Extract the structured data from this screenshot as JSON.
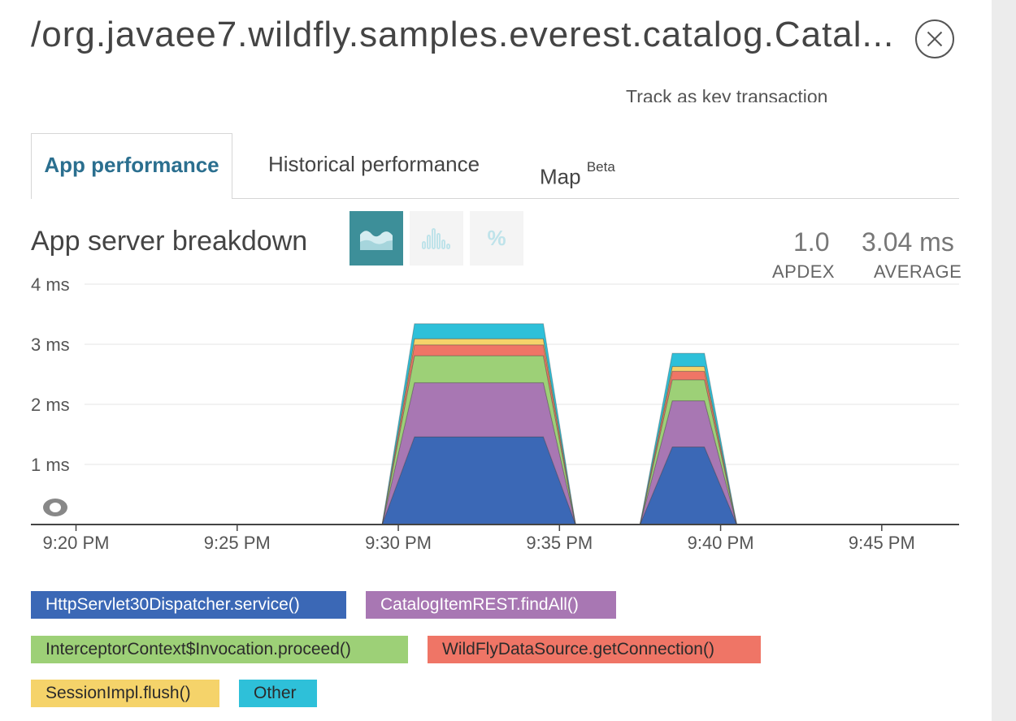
{
  "header": {
    "title": "/org.javaee7.wildfly.samples.everest.catalog.Catal...",
    "track_link": "Track as key transaction"
  },
  "tabs": [
    {
      "label": "App performance",
      "active": true
    },
    {
      "label": "Historical performance",
      "active": false
    },
    {
      "label": "Map",
      "badge": "Beta",
      "active": false
    }
  ],
  "section": {
    "title": "App server breakdown",
    "view_buttons": [
      {
        "icon": "area-chart-icon",
        "active": true
      },
      {
        "icon": "histogram-icon",
        "active": false
      },
      {
        "icon": "percent-icon",
        "label": "%",
        "active": false
      }
    ]
  },
  "stats": {
    "apdex": {
      "value": "1.0",
      "label": "APDEX"
    },
    "average": {
      "value": "3.04 ms",
      "label": "AVERAGE"
    }
  },
  "chart_data": {
    "type": "area",
    "stacked": true,
    "y_ticks": [
      "1 ms",
      "2 ms",
      "3 ms",
      "4 ms"
    ],
    "y_tick_values": [
      1,
      2,
      3,
      4
    ],
    "ylim": [
      0,
      4
    ],
    "x_tick_labels": [
      "9:20 PM",
      "9:25 PM",
      "9:30 PM",
      "9:35 PM",
      "9:40 PM",
      "9:45 PM"
    ],
    "x_tick_minutes": [
      20,
      25,
      30,
      35,
      40,
      45
    ],
    "xlim_minutes": [
      18.6,
      47.4
    ],
    "x_minutes": [
      29.5,
      30.5,
      34.5,
      35.5,
      37.5,
      38.5,
      39.5,
      40.5
    ],
    "series": [
      {
        "name": "HttpServlet30Dispatcher.service()",
        "color": "#3b68b6",
        "values": [
          0,
          1.46,
          1.46,
          0,
          0,
          1.29,
          1.29,
          0
        ]
      },
      {
        "name": "CatalogItemREST.findAll()",
        "color": "#a877b3",
        "values": [
          0,
          0.9,
          0.9,
          0,
          0,
          0.77,
          0.77,
          0
        ]
      },
      {
        "name": "InterceptorContext$Invocation.proceed()",
        "color": "#9dd077",
        "values": [
          0,
          0.45,
          0.45,
          0,
          0,
          0.35,
          0.35,
          0
        ]
      },
      {
        "name": "WildFlyDataSource.getConnection()",
        "color": "#ef7566",
        "values": [
          0,
          0.18,
          0.18,
          0,
          0,
          0.14,
          0.14,
          0
        ]
      },
      {
        "name": "SessionImpl.flush()",
        "color": "#f5d36a",
        "values": [
          0,
          0.1,
          0.1,
          0,
          0,
          0.08,
          0.08,
          0
        ]
      },
      {
        "name": "Other",
        "color": "#2ec0d9",
        "values": [
          0,
          0.25,
          0.25,
          0,
          0,
          0.22,
          0.22,
          0
        ]
      }
    ]
  },
  "legend": [
    {
      "label": "HttpServlet30Dispatcher.service()",
      "bg": "#3b68b6",
      "fg": "#ffffff"
    },
    {
      "label": "CatalogItemREST.findAll()",
      "bg": "#a877b3",
      "fg": "#ffffff"
    },
    {
      "label": "InterceptorContext$Invocation.proceed()",
      "bg": "#9dd077",
      "fg": "#2b2b2b"
    },
    {
      "label": "WildFlyDataSource.getConnection()",
      "bg": "#ef7566",
      "fg": "#2b2b2b"
    },
    {
      "label": "SessionImpl.flush()",
      "bg": "#f5d36a",
      "fg": "#2b2b2b"
    },
    {
      "label": "Other",
      "bg": "#2ec0d9",
      "fg": "#2b2b2b"
    }
  ]
}
